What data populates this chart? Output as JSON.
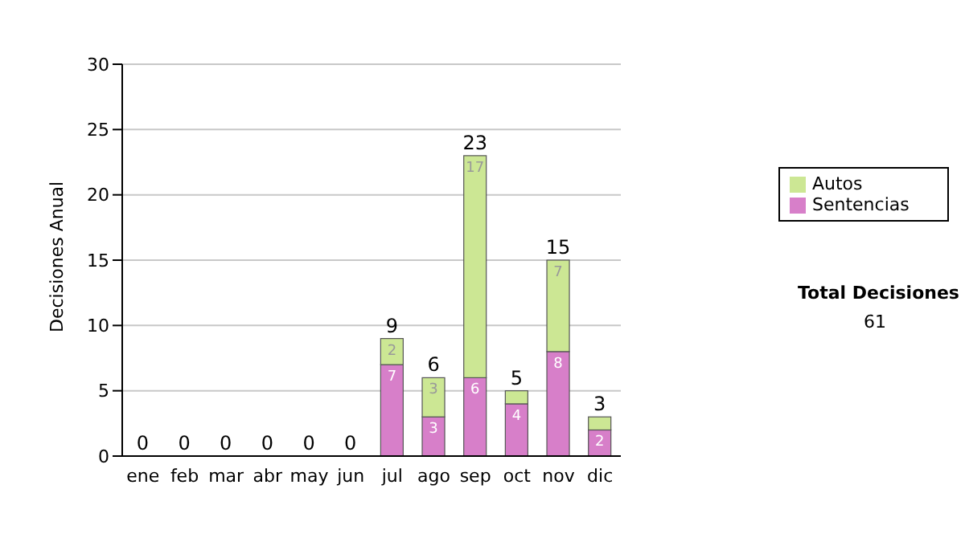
{
  "chart_data": {
    "type": "bar",
    "stacked": true,
    "ylabel": "Decisiones Anual",
    "categories": [
      "ene",
      "feb",
      "mar",
      "abr",
      "may",
      "jun",
      "jul",
      "ago",
      "sep",
      "oct",
      "nov",
      "dic"
    ],
    "series": [
      {
        "name": "Sentencias",
        "color": "#d77fc9",
        "values": [
          0,
          0,
          0,
          0,
          0,
          0,
          7,
          3,
          6,
          4,
          8,
          2
        ],
        "value_labels": [
          null,
          null,
          null,
          null,
          null,
          null,
          "7",
          "3",
          "6",
          "4",
          "8",
          "2"
        ]
      },
      {
        "name": "Autos",
        "color": "#cce794",
        "values": [
          0,
          0,
          0,
          0,
          0,
          0,
          2,
          3,
          17,
          1,
          7,
          1
        ],
        "value_labels": [
          null,
          null,
          null,
          null,
          null,
          null,
          "2",
          "3",
          "17",
          null,
          "7",
          null
        ]
      }
    ],
    "totals": [
      "0",
      "0",
      "0",
      "0",
      "0",
      "0",
      "9",
      "6",
      "23",
      "5",
      "15",
      "3"
    ],
    "ylim": [
      0,
      30
    ],
    "yticks": [
      0,
      5,
      10,
      15,
      20,
      25,
      30
    ],
    "grid": "y",
    "legend": "right",
    "annotations": [
      "Total Decisiones",
      "61"
    ]
  }
}
